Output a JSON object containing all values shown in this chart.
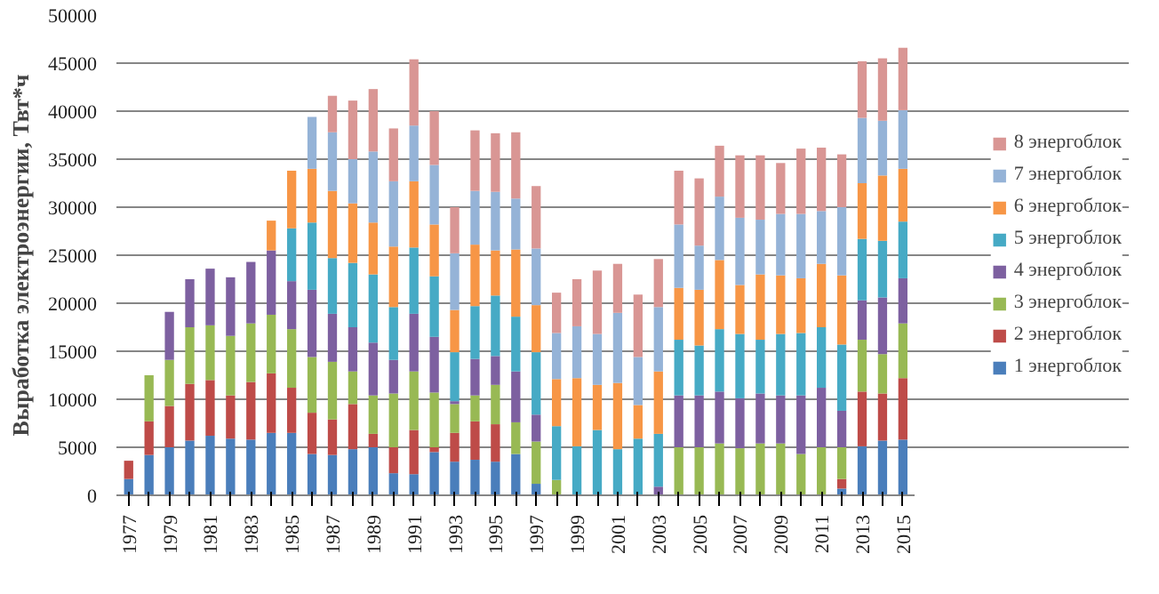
{
  "chart_data": {
    "type": "bar",
    "stacked": true,
    "ylabel": "Выработка электроэнергии, Твт*ч",
    "categories": [
      "1977",
      null,
      "1979",
      null,
      "1981",
      null,
      "1983",
      null,
      "1985",
      null,
      "1987",
      null,
      "1989",
      null,
      "1991",
      null,
      "1993",
      null,
      "1995",
      null,
      "1997",
      null,
      "1999",
      null,
      "2001",
      null,
      "2003",
      null,
      "2005",
      null,
      "2007",
      null,
      "2009",
      null,
      "2011",
      null,
      "2013",
      null,
      "2015"
    ],
    "ylim": [
      0,
      50000
    ],
    "yticks": [
      0,
      5000,
      10000,
      15000,
      20000,
      25000,
      30000,
      35000,
      40000,
      45000,
      50000
    ],
    "grid": "y",
    "legend": "right",
    "series": [
      {
        "name": "1 энергоблок",
        "color": "#4a7ebb",
        "values": [
          1700,
          4200,
          5000,
          5700,
          6200,
          5900,
          5800,
          6500,
          6500,
          4300,
          4200,
          4800,
          5000,
          2300,
          2200,
          4500,
          3500,
          3700,
          3500,
          4300,
          1200,
          null,
          null,
          null,
          null,
          null,
          null,
          null,
          null,
          null,
          null,
          null,
          null,
          null,
          null,
          700,
          5100,
          5700,
          5800
        ]
      },
      {
        "name": "2 энергоблок",
        "color": "#be4b48",
        "values": [
          1900,
          3500,
          4300,
          5900,
          5800,
          4500,
          6000,
          6200,
          4700,
          4300,
          3700,
          4700,
          1400,
          2700,
          4600,
          500,
          3000,
          4000,
          3900,
          null,
          null,
          null,
          null,
          null,
          null,
          null,
          null,
          null,
          null,
          null,
          null,
          null,
          null,
          null,
          null,
          1000,
          5700,
          4900,
          6400
        ]
      },
      {
        "name": "3 энергоблок",
        "color": "#98b954",
        "values": [
          null,
          4800,
          4800,
          5900,
          5700,
          6200,
          6100,
          6100,
          6100,
          5800,
          6000,
          3400,
          4000,
          5600,
          6100,
          5700,
          3000,
          2700,
          4100,
          3300,
          4400,
          1600,
          null,
          null,
          null,
          null,
          null,
          5000,
          5000,
          5400,
          4900,
          5400,
          5400,
          4300,
          5000,
          3300,
          5400,
          4100,
          5700
        ]
      },
      {
        "name": "4 энергоблок",
        "color": "#7d60a0",
        "values": [
          null,
          null,
          5000,
          5000,
          5900,
          6100,
          6400,
          6700,
          5000,
          7000,
          5000,
          4600,
          5500,
          3500,
          6000,
          5800,
          300,
          3800,
          3000,
          5300,
          2800,
          null,
          null,
          null,
          null,
          null,
          900,
          5400,
          5400,
          5400,
          5200,
          5200,
          5000,
          6100,
          6200,
          3800,
          4100,
          5900,
          4700
        ]
      },
      {
        "name": "5 энергоблок",
        "color": "#46aac5",
        "values": [
          null,
          null,
          null,
          null,
          null,
          null,
          null,
          null,
          5500,
          7000,
          5800,
          6700,
          7100,
          5500,
          6900,
          6300,
          5100,
          5500,
          6300,
          5700,
          6500,
          5600,
          5100,
          6800,
          4800,
          5900,
          5500,
          5800,
          5200,
          6500,
          6700,
          5600,
          6400,
          6500,
          6300,
          6900,
          6400,
          5900,
          5900
        ]
      },
      {
        "name": "6 энергоблок",
        "color": "#f79646",
        "values": [
          null,
          null,
          null,
          null,
          null,
          null,
          null,
          3100,
          6000,
          5600,
          7000,
          6200,
          5400,
          6300,
          6900,
          5400,
          4400,
          6400,
          4700,
          7000,
          4900,
          4900,
          7100,
          4700,
          6900,
          3500,
          6500,
          5400,
          5800,
          7200,
          5100,
          6800,
          6100,
          5700,
          6600,
          7200,
          5800,
          6800,
          5500
        ]
      },
      {
        "name": "7 энергоблок",
        "color": "#95b3d7",
        "values": [
          null,
          null,
          null,
          null,
          null,
          null,
          null,
          null,
          null,
          5400,
          6100,
          4600,
          7400,
          6800,
          5800,
          6200,
          5900,
          5600,
          6100,
          5300,
          5900,
          4800,
          5400,
          5300,
          7300,
          5000,
          6700,
          6600,
          4600,
          6600,
          7000,
          5700,
          6400,
          6700,
          5500,
          7100,
          6800,
          5700,
          6100
        ]
      },
      {
        "name": "8 энергоблок",
        "color": "#d99694",
        "values": [
          null,
          null,
          null,
          null,
          null,
          null,
          null,
          null,
          null,
          null,
          3800,
          6100,
          6500,
          5500,
          6900,
          5600,
          4800,
          6300,
          6100,
          6900,
          6500,
          4200,
          4900,
          6600,
          5100,
          6500,
          5000,
          5600,
          7000,
          5300,
          6500,
          6700,
          5300,
          6800,
          6600,
          5500,
          5900,
          6500,
          6500
        ]
      }
    ]
  }
}
